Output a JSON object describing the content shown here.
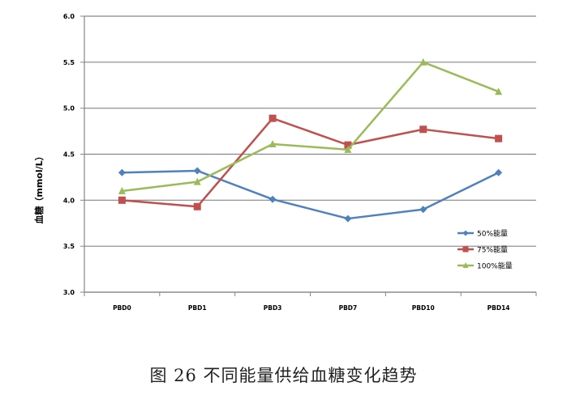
{
  "caption": "图 26 不同能量供给血糖变化趋势",
  "chart_data": {
    "type": "line",
    "title": "",
    "xlabel": "",
    "ylabel": "血糖（mmol/L）",
    "categories": [
      "PBD0",
      "PBD1",
      "PBD3",
      "PBD7",
      "PBD10",
      "PBD14"
    ],
    "ylim": [
      3.0,
      6.0
    ],
    "yticks": [
      "3.0",
      "3.5",
      "4.0",
      "4.5",
      "5.0",
      "5.5",
      "6.0"
    ],
    "grid": true,
    "legend_position": "right",
    "series": [
      {
        "name": "50%能量",
        "values": [
          4.3,
          4.32,
          4.01,
          3.8,
          3.9,
          4.3
        ],
        "color": "#4f81bd",
        "marker": "diamond"
      },
      {
        "name": "75%能量",
        "values": [
          4.0,
          3.93,
          4.89,
          4.6,
          4.77,
          4.67
        ],
        "color": "#c0504d",
        "marker": "square"
      },
      {
        "name": "100%能量",
        "values": [
          4.1,
          4.2,
          4.61,
          4.55,
          5.5,
          5.18
        ],
        "color": "#9bbb59",
        "marker": "triangle"
      }
    ]
  }
}
